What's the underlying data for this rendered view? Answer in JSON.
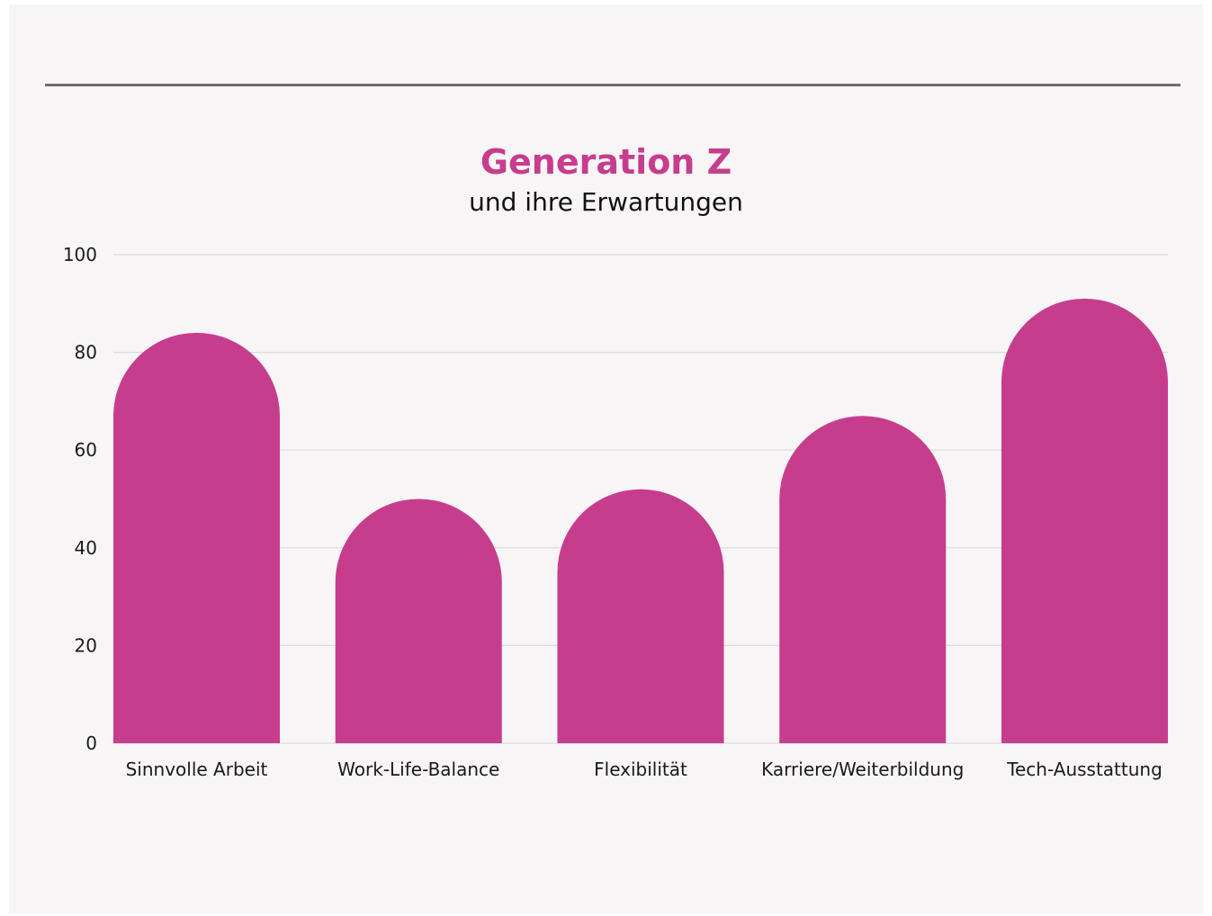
{
  "colors": {
    "bar": "#c73d8e",
    "title": "#c73d8e",
    "grid": "#dcdcdc",
    "rule": "#6d6d6d"
  },
  "chart_data": {
    "type": "bar",
    "title": "Generation Z",
    "subtitle": "und ihre Erwartungen",
    "categories": [
      "Sinnvolle Arbeit",
      "Work-Life-Balance",
      "Flexibilität",
      "Karriere/Weiterbildung",
      "Tech-Ausstattung"
    ],
    "values": [
      84,
      50,
      52,
      67,
      91
    ],
    "ylim": [
      0,
      100
    ],
    "yticks": [
      0,
      20,
      40,
      60,
      80,
      100
    ],
    "ytick_labels": [
      "0",
      "20",
      "40",
      "60",
      "80",
      "100"
    ],
    "grid": true,
    "legend": "none",
    "bar_shape": "rounded-top"
  }
}
